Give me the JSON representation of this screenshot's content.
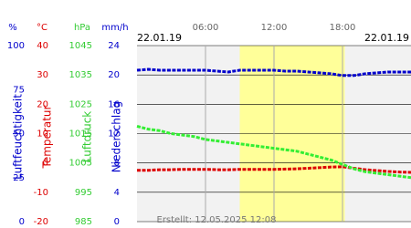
{
  "chart_data": {
    "type": "line",
    "date_left": "22.01.19",
    "date_right": "22.01.19",
    "note": "Erstellt: 12.05.2025 12:08",
    "x": [
      0,
      1,
      2,
      3,
      4,
      5,
      6,
      7,
      8,
      9,
      10,
      11,
      12,
      13,
      14,
      15,
      16,
      17,
      18,
      19,
      20,
      21,
      22,
      23,
      24
    ],
    "xlim": [
      0,
      24
    ],
    "xticks": [
      {
        "value": 6,
        "label": "06:00"
      },
      {
        "value": 12,
        "label": "12:00"
      },
      {
        "value": 18,
        "label": "18:00"
      }
    ],
    "daylight": [
      9,
      18.2
    ],
    "y_axes": [
      {
        "unit": "%",
        "name": "Luftfeuchtigkeit",
        "color": "#0000cc",
        "ylim": [
          0,
          100
        ],
        "yticks": [
          0,
          25,
          50,
          75,
          100
        ]
      },
      {
        "unit": "°C",
        "name": "Temperatur",
        "color": "#dd0000",
        "ylim": [
          -20,
          40
        ],
        "yticks": [
          -20,
          -10,
          0,
          10,
          20,
          30,
          40
        ]
      },
      {
        "unit": "hPa",
        "name": "Luftdruck",
        "color": "#33cc33",
        "ylim": [
          985,
          1045
        ],
        "yticks": [
          985,
          995,
          1005,
          1015,
          1025,
          1035,
          1045
        ]
      },
      {
        "unit": "mm/h",
        "name": "Niederschlag",
        "color": "#0000cc",
        "ylim": [
          0,
          24
        ],
        "yticks": [
          0,
          4,
          8,
          12,
          16,
          20,
          24
        ]
      }
    ],
    "series": [
      {
        "name": "Luftfeuchtigkeit",
        "color": "#0000cc",
        "axis": 0,
        "values": [
          86,
          86.5,
          86,
          86,
          86,
          86,
          86,
          85.5,
          85,
          86,
          86,
          86,
          86,
          85.5,
          85.5,
          85,
          84.5,
          84,
          83,
          83,
          84,
          84.5,
          85,
          85,
          85
        ]
      },
      {
        "name": "Temperatur",
        "color": "#dd0000",
        "axis": 1,
        "values": [
          -2.5,
          -2.5,
          -2.3,
          -2.3,
          -2.2,
          -2.2,
          -2.2,
          -2.3,
          -2.3,
          -2.2,
          -2.2,
          -2.2,
          -2.2,
          -2.1,
          -2,
          -1.8,
          -1.6,
          -1.4,
          -1.3,
          -1.8,
          -2.3,
          -2.6,
          -2.9,
          -3.1,
          -3.2
        ]
      },
      {
        "name": "Luftdruck",
        "color": "#33ee33",
        "axis": 2,
        "values": [
          1017.5,
          1016.5,
          1016,
          1015,
          1014.5,
          1014,
          1013,
          1012.5,
          1012,
          1011.5,
          1011,
          1010.5,
          1010,
          1009.5,
          1009,
          1008,
          1007,
          1006,
          1004.5,
          1003,
          1002,
          1001.5,
          1001,
          1000.5,
          1000
        ]
      }
    ]
  }
}
